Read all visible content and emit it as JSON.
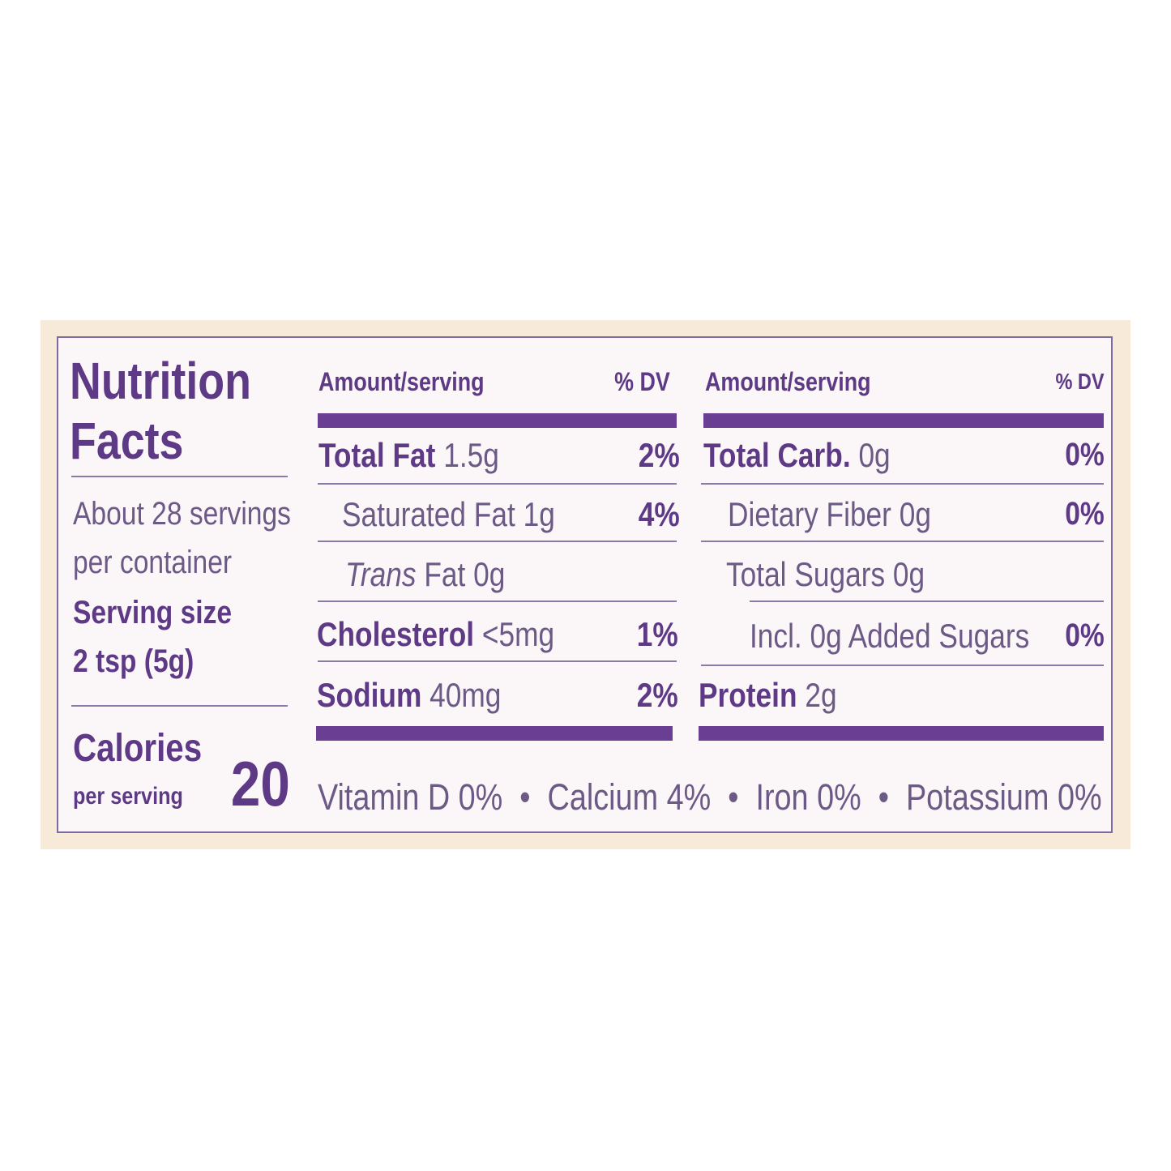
{
  "title": [
    "Nutrition",
    "Facts"
  ],
  "servings": [
    "About 28 servings",
    "per container"
  ],
  "serving_size": {
    "label": "Serving size",
    "value": "2 tsp (5g)"
  },
  "calories": {
    "label": "Calories",
    "note": "per serving",
    "value": 20
  },
  "left_table": {
    "header": [
      "Amount/serving",
      "% DV"
    ],
    "rows": [
      {
        "name": "Total Fat",
        "amount": "1.5g",
        "dv": "2%"
      },
      {
        "name": "Saturated Fat",
        "amount": "1g",
        "dv": "4%"
      },
      {
        "name_italic": "Trans",
        "name": "Fat",
        "amount": "0g"
      },
      {
        "name": "Cholesterol",
        "amount": "<5mg",
        "dv": "1%"
      },
      {
        "name": "Sodium",
        "amount": "40mg",
        "dv": "2%"
      }
    ]
  },
  "right_table": {
    "header": [
      "Amount/serving",
      "% DV"
    ],
    "rows": [
      {
        "name": "Total Carb.",
        "amount": "0g",
        "dv": "0%"
      },
      {
        "name": "Dietary Fiber",
        "amount": "0g",
        "dv": "0%"
      },
      {
        "name": "Total Sugars",
        "amount": "0g"
      },
      {
        "name": "Incl. 0g Added Sugars",
        "dv": "0%"
      },
      {
        "name": "Protein",
        "amount": "2g"
      }
    ]
  },
  "footnote": [
    "Vitamin D 0%",
    "Calcium 4%",
    "Iron 0%",
    "Potassium 0%"
  ]
}
